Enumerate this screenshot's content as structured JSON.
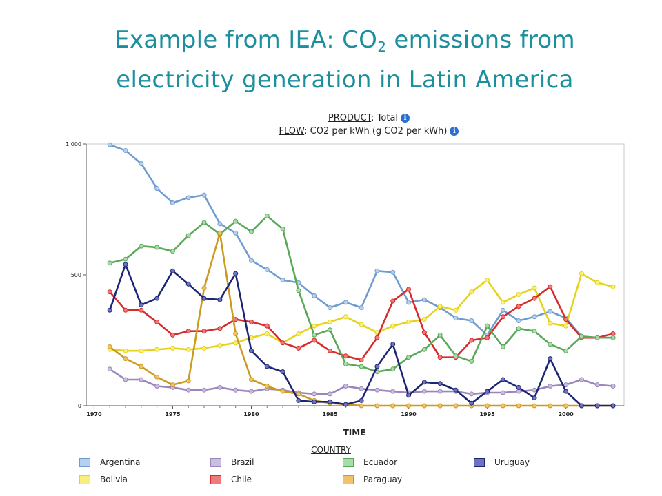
{
  "slide": {
    "title_prefix": "Example from IEA: CO",
    "title_sub": "2",
    "title_suffix": " emissions from",
    "title_line2": "electricity generation in Latin America"
  },
  "header": {
    "product_label": "PRODUCT",
    "product_value": ": Total",
    "flow_label": "FLOW",
    "flow_value": ": CO2 per kWh (g CO2 per kWh)",
    "info_glyph": "i"
  },
  "legend": {
    "title": "COUNTRY"
  },
  "chart_data": {
    "type": "line",
    "xlabel": "TIME",
    "ylabel": "",
    "xlim": [
      1969.5,
      2003.7
    ],
    "ylim": [
      0,
      1000
    ],
    "x_ticks": [
      1970,
      1975,
      1980,
      1985,
      1990,
      1995,
      2000
    ],
    "y_ticks": [
      0,
      500,
      1000
    ],
    "y_tick_labels": [
      "0",
      "500",
      "1,000"
    ],
    "grid": false,
    "legend_placement": "bottom",
    "x": [
      1971,
      1972,
      1973,
      1974,
      1975,
      1976,
      1977,
      1978,
      1979,
      1980,
      1981,
      1982,
      1983,
      1984,
      1985,
      1986,
      1987,
      1988,
      1989,
      1990,
      1991,
      1992,
      1993,
      1994,
      1995,
      1996,
      1997,
      1998,
      1999,
      2000,
      2001,
      2002,
      2003
    ],
    "series": [
      {
        "name": "Argentina",
        "color": "#6f9ccf",
        "fill": "#b7d0ee",
        "values": [
          997,
          975,
          925,
          830,
          775,
          795,
          805,
          695,
          660,
          555,
          520,
          480,
          470,
          420,
          375,
          395,
          375,
          515,
          510,
          395,
          405,
          375,
          335,
          325,
          270,
          365,
          325,
          340,
          360,
          335,
          265,
          260,
          260
        ]
      },
      {
        "name": "Bolivia",
        "color": "#e6d21a",
        "fill": "#f8f07a",
        "values": [
          215,
          210,
          210,
          215,
          220,
          215,
          220,
          230,
          240,
          260,
          275,
          240,
          275,
          305,
          320,
          340,
          310,
          280,
          305,
          320,
          330,
          380,
          365,
          435,
          480,
          395,
          425,
          450,
          315,
          305,
          505,
          470,
          455
        ]
      },
      {
        "name": "Brazil",
        "color": "#9a86bd",
        "fill": "#c9bde0",
        "values": [
          140,
          100,
          100,
          75,
          70,
          60,
          60,
          70,
          60,
          55,
          65,
          60,
          50,
          45,
          45,
          75,
          65,
          60,
          55,
          50,
          55,
          55,
          55,
          45,
          50,
          50,
          55,
          60,
          75,
          80,
          100,
          80,
          75
        ]
      },
      {
        "name": "Chile",
        "color": "#d42b2b",
        "fill": "#f07a7a",
        "values": [
          435,
          365,
          365,
          320,
          270,
          285,
          285,
          295,
          330,
          320,
          305,
          240,
          220,
          250,
          210,
          190,
          175,
          260,
          400,
          445,
          280,
          185,
          185,
          250,
          260,
          340,
          380,
          410,
          455,
          330,
          260,
          260,
          275
        ]
      },
      {
        "name": "Ecuador",
        "color": "#58a858",
        "fill": "#a8dca8",
        "values": [
          545,
          560,
          610,
          605,
          590,
          650,
          700,
          655,
          705,
          665,
          725,
          675,
          440,
          270,
          290,
          160,
          150,
          130,
          140,
          185,
          215,
          270,
          190,
          170,
          305,
          225,
          295,
          285,
          235,
          210,
          265,
          260,
          260
        ]
      },
      {
        "name": "Paraguay",
        "color": "#cc9a1e",
        "fill": "#f2c26a",
        "values": [
          225,
          180,
          150,
          110,
          80,
          95,
          450,
          660,
          275,
          100,
          75,
          55,
          45,
          20,
          10,
          5,
          0,
          0,
          0,
          0,
          0,
          0,
          0,
          0,
          0,
          0,
          0,
          0,
          0,
          0,
          0,
          0,
          0
        ]
      },
      {
        "name": "Uruguay",
        "color": "#1c2573",
        "fill": "#6c74c0",
        "values": [
          365,
          540,
          385,
          410,
          515,
          465,
          410,
          405,
          505,
          210,
          150,
          130,
          20,
          15,
          15,
          5,
          20,
          150,
          235,
          40,
          90,
          85,
          60,
          10,
          55,
          100,
          70,
          30,
          180,
          55,
          0,
          0,
          0
        ]
      }
    ]
  }
}
